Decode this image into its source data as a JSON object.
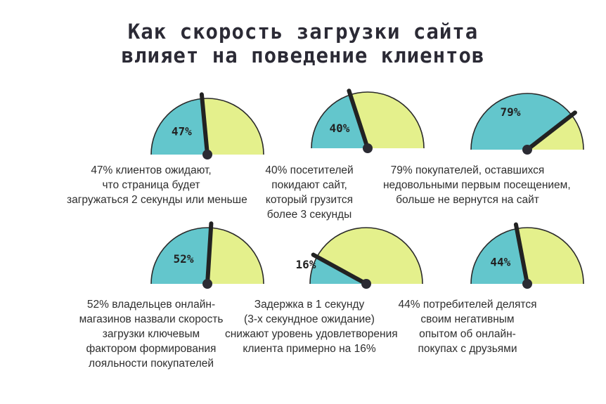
{
  "title": {
    "line1": "Как скорость загрузки сайта",
    "line2": "влияет на поведение клиентов"
  },
  "colors": {
    "teal": "#63c6cc",
    "yellow": "#e4f08c",
    "needle": "#222222"
  },
  "chart_data": [
    {
      "type": "gauge",
      "value": 47,
      "label": "47%",
      "caption": [
        "47% клиентов ожидают,",
        "что страница будет",
        "загружаться 2 секунды или меньше"
      ]
    },
    {
      "type": "gauge",
      "value": 40,
      "label": "40%",
      "caption": [
        "40% посетителей",
        "покидают сайт,",
        "который грузится",
        "более 3 секунды"
      ]
    },
    {
      "type": "gauge",
      "value": 79,
      "label": "79%",
      "caption": [
        "79% покупателей, оставшихся",
        "недовольными первым посещением,",
        "больше не вернутся на сайт"
      ]
    },
    {
      "type": "gauge",
      "value": 52,
      "label": "52%",
      "caption": [
        "52% владельцев онлайн-",
        "магазинов назвали скорость",
        "загрузки ключевым",
        "фактором формирования",
        "лояльности покупателей"
      ]
    },
    {
      "type": "gauge",
      "value": 16,
      "label": "16%",
      "caption": [
        "Задержка в 1 секунду",
        "(3-х секундное ожидание)",
        "снижают уровень удовлетворения",
        "клиента примерно на 16%"
      ]
    },
    {
      "type": "gauge",
      "value": 44,
      "label": "44%",
      "caption": [
        "44% потребителей делятся",
        "своим негативным",
        "опытом об онлайн-",
        "покупах с друзьями"
      ]
    }
  ]
}
